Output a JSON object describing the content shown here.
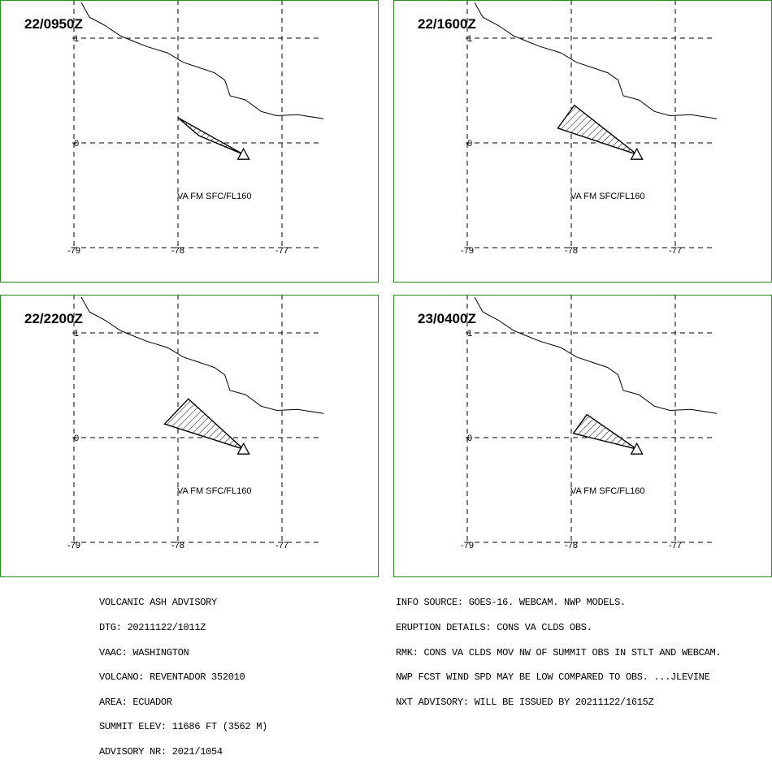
{
  "panels": [
    {
      "time": "22/0950Z",
      "layer": "VA FM SFC/FL160",
      "plume": [
        [
          -78.0,
          0.24
        ],
        [
          -77.8,
          0.07
        ],
        [
          -77.37,
          -0.11
        ]
      ]
    },
    {
      "time": "22/1600Z",
      "layer": "VA FM SFC/FL160",
      "plume": [
        [
          -78.13,
          0.14
        ],
        [
          -77.97,
          0.36
        ],
        [
          -77.37,
          -0.11
        ]
      ]
    },
    {
      "time": "22/2200Z",
      "layer": "VA FM SFC/FL160",
      "plume": [
        [
          -78.13,
          0.13
        ],
        [
          -77.9,
          0.37
        ],
        [
          -77.37,
          -0.11
        ]
      ]
    },
    {
      "time": "23/0400Z",
      "layer": "VA FM SFC/FL160",
      "plume": [
        [
          -77.98,
          0.04
        ],
        [
          -77.85,
          0.22
        ],
        [
          -77.37,
          -0.11
        ]
      ]
    }
  ],
  "axes": {
    "x_ticks": [
      {
        "value": -79,
        "label": "-79"
      },
      {
        "value": -78,
        "label": "-78"
      },
      {
        "value": -77,
        "label": "-77"
      }
    ],
    "y_ticks": [
      {
        "value": 1,
        "label": "1"
      },
      {
        "value": 0,
        "label": "0"
      }
    ],
    "lon_range": [
      -79.1,
      -76.6
    ],
    "lat_range": [
      -1.0,
      1.3
    ]
  },
  "volcano": {
    "name": "REVENTADOR",
    "lon": -77.37,
    "lat": -0.11
  },
  "coastline": [
    [
      -78.93,
      1.34
    ],
    [
      -78.85,
      1.2
    ],
    [
      -78.7,
      1.12
    ],
    [
      -78.55,
      1.02
    ],
    [
      -78.45,
      0.98
    ],
    [
      -78.3,
      0.92
    ],
    [
      -78.1,
      0.86
    ],
    [
      -77.95,
      0.77
    ],
    [
      -77.8,
      0.72
    ],
    [
      -77.65,
      0.67
    ],
    [
      -77.55,
      0.6
    ],
    [
      -77.5,
      0.45
    ],
    [
      -77.35,
      0.41
    ],
    [
      -77.2,
      0.3
    ],
    [
      -77.05,
      0.26
    ],
    [
      -76.85,
      0.27
    ],
    [
      -76.6,
      0.23
    ]
  ],
  "advisory_left": [
    "VOLCANIC ASH ADVISORY",
    "DTG: 20211122/1011Z",
    "VAAC: WASHINGTON",
    "VOLCANO: REVENTADOR 352010",
    "AREA: ECUADOR",
    "SUMMIT ELEV: 11686 FT (3562 M)",
    "ADVISORY NR: 2021/1054"
  ],
  "advisory_right": [
    "INFO SOURCE: GOES-16. WEBCAM. NWP MODELS.",
    "ERUPTION DETAILS: CONS VA CLDS OBS.",
    "RMK: CONS VA CLDS MOV NW OF SUMMIT OBS IN STLT AND WEBCAM.",
    "NWP FCST WIND SPD MAY BE LOW COMPARED TO OBS. ...JLEVINE",
    "NXT ADVISORY: WILL BE ISSUED BY 20211122/1615Z"
  ]
}
